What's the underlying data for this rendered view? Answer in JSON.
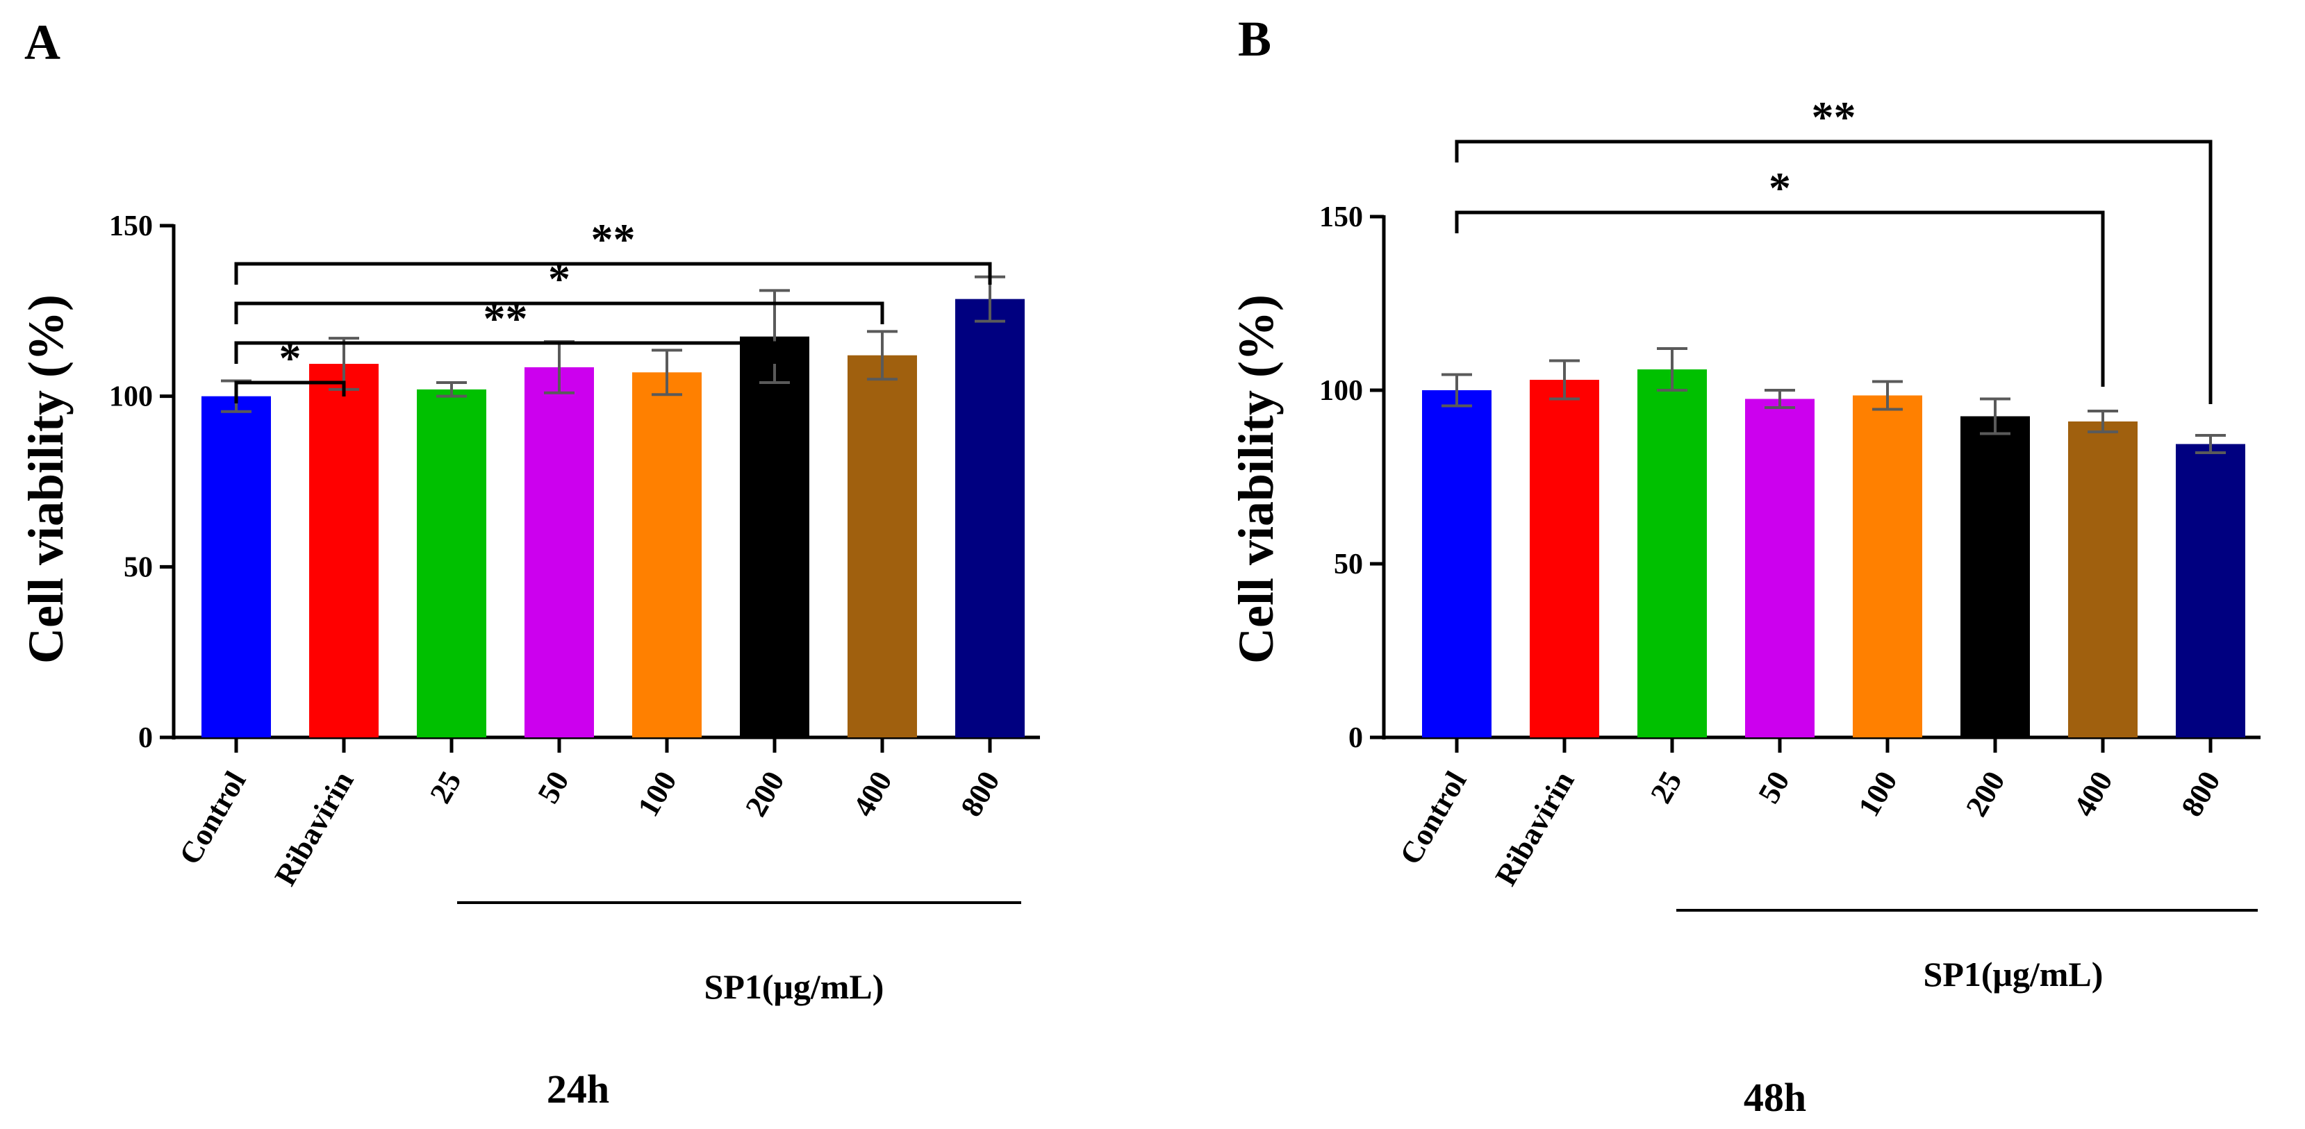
{
  "chart_data": [
    {
      "panel_label": "A",
      "type": "bar",
      "ylabel": "Cell viability (%)",
      "yticks": [
        0,
        50,
        100,
        150
      ],
      "ylim": [
        0,
        150
      ],
      "categories": [
        "Control",
        "Ribavirin",
        "25",
        "50",
        "100",
        "200",
        "400",
        "800"
      ],
      "values": [
        100,
        109.5,
        102,
        108.5,
        107,
        117.5,
        112,
        128.5
      ],
      "errors": [
        4.5,
        7.5,
        2,
        7.5,
        6.5,
        13.5,
        7,
        6.5
      ],
      "colors": [
        "#0000ff",
        "#ff0000",
        "#00c000",
        "#cc00ee",
        "#ff8000",
        "#000000",
        "#a0600e",
        "#000080"
      ],
      "group_label": "SP1(μg/mL)",
      "group_range": [
        2,
        7
      ],
      "significance": [
        {
          "from": 0,
          "to": 1,
          "label": "*"
        },
        {
          "from": 0,
          "to": 5,
          "label": "**"
        },
        {
          "from": 0,
          "to": 6,
          "label": "*"
        },
        {
          "from": 0,
          "to": 7,
          "label": "**"
        }
      ],
      "caption": "24h"
    },
    {
      "panel_label": "B",
      "type": "bar",
      "ylabel": "Cell viability (%)",
      "yticks": [
        0,
        50,
        100,
        150
      ],
      "ylim": [
        0,
        150
      ],
      "categories": [
        "Control",
        "Ribavirin",
        "25",
        "50",
        "100",
        "200",
        "400",
        "800"
      ],
      "values": [
        100,
        103,
        106,
        97.5,
        98.5,
        92.5,
        91,
        84.5
      ],
      "errors": [
        4.5,
        5.5,
        6,
        2.5,
        4,
        5,
        3,
        2.5
      ],
      "colors": [
        "#0000ff",
        "#ff0000",
        "#00c000",
        "#cc00ee",
        "#ff8000",
        "#000000",
        "#a0600e",
        "#000080"
      ],
      "group_label": "SP1(μg/mL)",
      "group_range": [
        2,
        7
      ],
      "significance": [
        {
          "from": 0,
          "to": 6,
          "label": "*"
        },
        {
          "from": 0,
          "to": 7,
          "label": "**"
        }
      ],
      "caption": "48h"
    }
  ]
}
